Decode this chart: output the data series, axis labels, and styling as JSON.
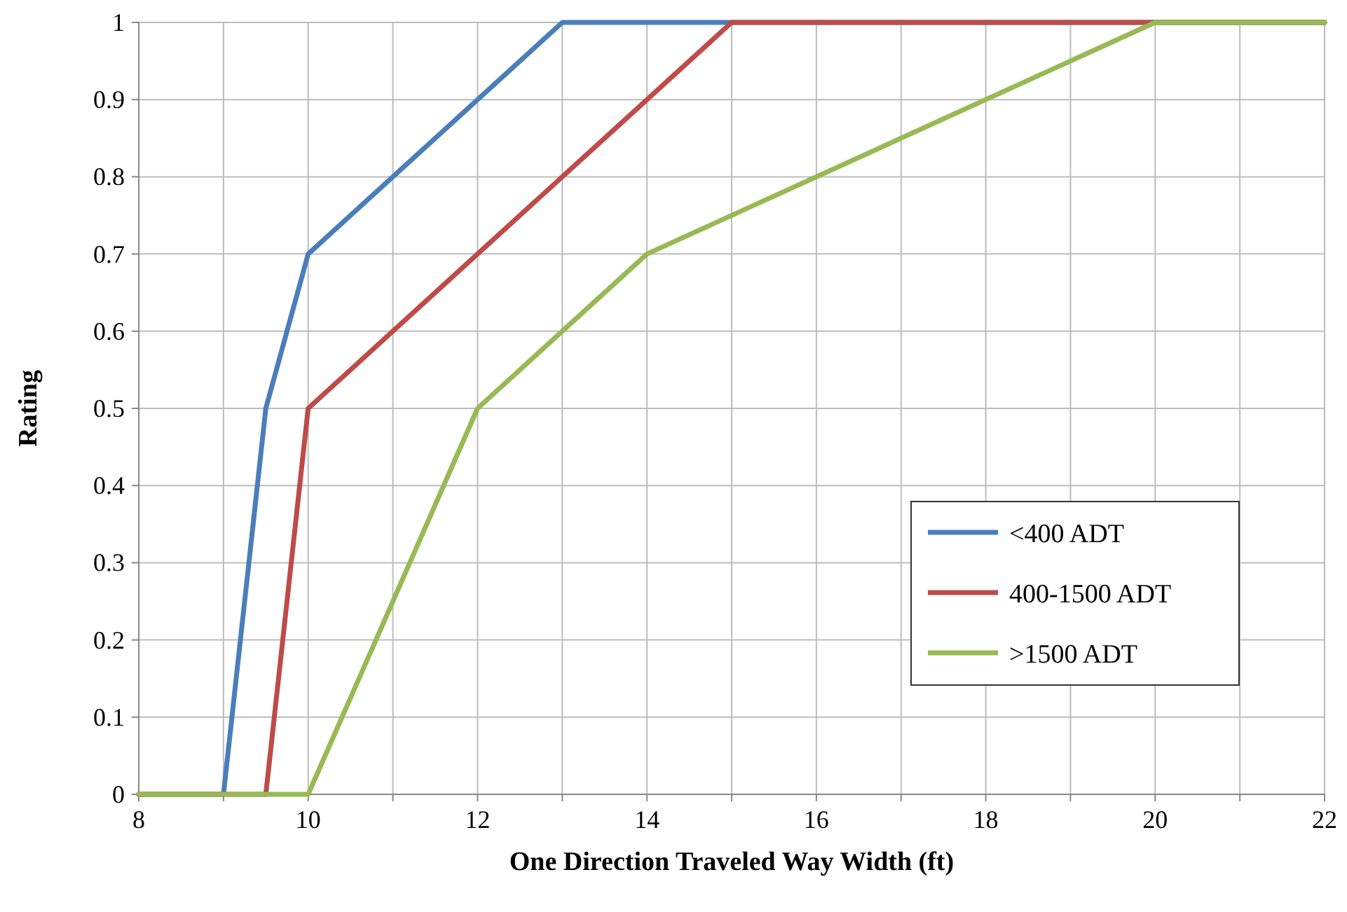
{
  "chart_data": {
    "type": "line",
    "xlabel": "One Direction Traveled Way Width (ft)",
    "ylabel": "Rating",
    "xlim": [
      8,
      22
    ],
    "xticks": [
      8,
      {
        "value": 9,
        "label": null
      },
      10,
      {
        "value": 11,
        "label": null
      },
      12,
      {
        "value": 13,
        "label": null
      },
      14,
      {
        "value": 15,
        "label": null
      },
      16,
      {
        "value": 17,
        "label": null
      },
      18,
      {
        "value": 19,
        "label": null
      },
      20,
      {
        "value": 21,
        "label": null
      },
      22
    ],
    "ylim": [
      0,
      1
    ],
    "yticks": [
      0,
      0.1,
      0.2,
      0.3,
      0.4,
      0.5,
      0.6,
      0.7,
      0.8,
      0.9,
      1
    ],
    "grid": true,
    "legend": "right",
    "marker": "none",
    "line_style": "solid",
    "series": [
      {
        "name": "<400 ADT",
        "color": "#4a7ebb",
        "x": [
          8,
          9,
          9.5,
          10,
          13,
          22
        ],
        "values": [
          0,
          0,
          0.5,
          0.7,
          1,
          1
        ]
      },
      {
        "name": "400-1500 ADT",
        "color": "#be4b48",
        "x": [
          8,
          9.5,
          10,
          15,
          22
        ],
        "values": [
          0,
          0,
          0.5,
          1,
          1
        ]
      },
      {
        "name": ">1500 ADT",
        "color": "#98b954",
        "x": [
          8,
          10,
          12,
          14,
          20,
          22
        ],
        "values": [
          0,
          0,
          0.5,
          0.7,
          1,
          1
        ]
      }
    ]
  }
}
